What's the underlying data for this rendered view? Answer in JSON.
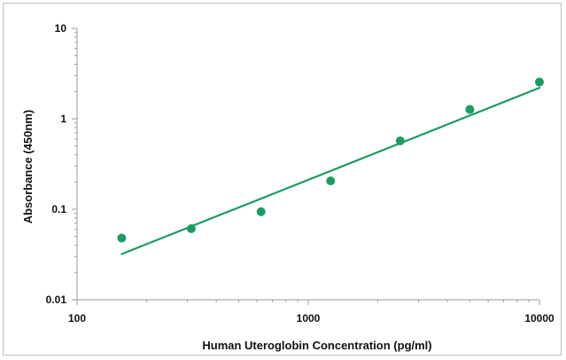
{
  "chart_data": {
    "type": "scatter",
    "title": "",
    "xlabel": "Human Uteroglobin Concentration (pg/ml)",
    "ylabel": "Absorbance (450nm)",
    "x_scale": "log",
    "y_scale": "log",
    "xlim": [
      100,
      10000
    ],
    "ylim": [
      0.01,
      10
    ],
    "x_ticks": [
      "100",
      "1000",
      "10000"
    ],
    "y_ticks": [
      "10",
      "1",
      "0.1",
      "0.01"
    ],
    "grid": false,
    "legend": "none",
    "series": [
      {
        "points": [
          {
            "x": 156,
            "y": 0.048
          },
          {
            "x": 312,
            "y": 0.061
          },
          {
            "x": 625,
            "y": 0.094
          },
          {
            "x": 1250,
            "y": 0.206
          },
          {
            "x": 2500,
            "y": 0.57
          },
          {
            "x": 5000,
            "y": 1.27
          },
          {
            "x": 10000,
            "y": 2.55
          }
        ],
        "color": "#1e9b64"
      }
    ],
    "trendline": {
      "type": "power",
      "from": {
        "x": 156,
        "y": 0.032
      },
      "to": {
        "x": 10000,
        "y": 2.2
      },
      "color": "#1e9b64"
    },
    "colors": {
      "axis": "#9a9a9a",
      "text": "#111111",
      "frame": "#bdbdbd"
    }
  }
}
